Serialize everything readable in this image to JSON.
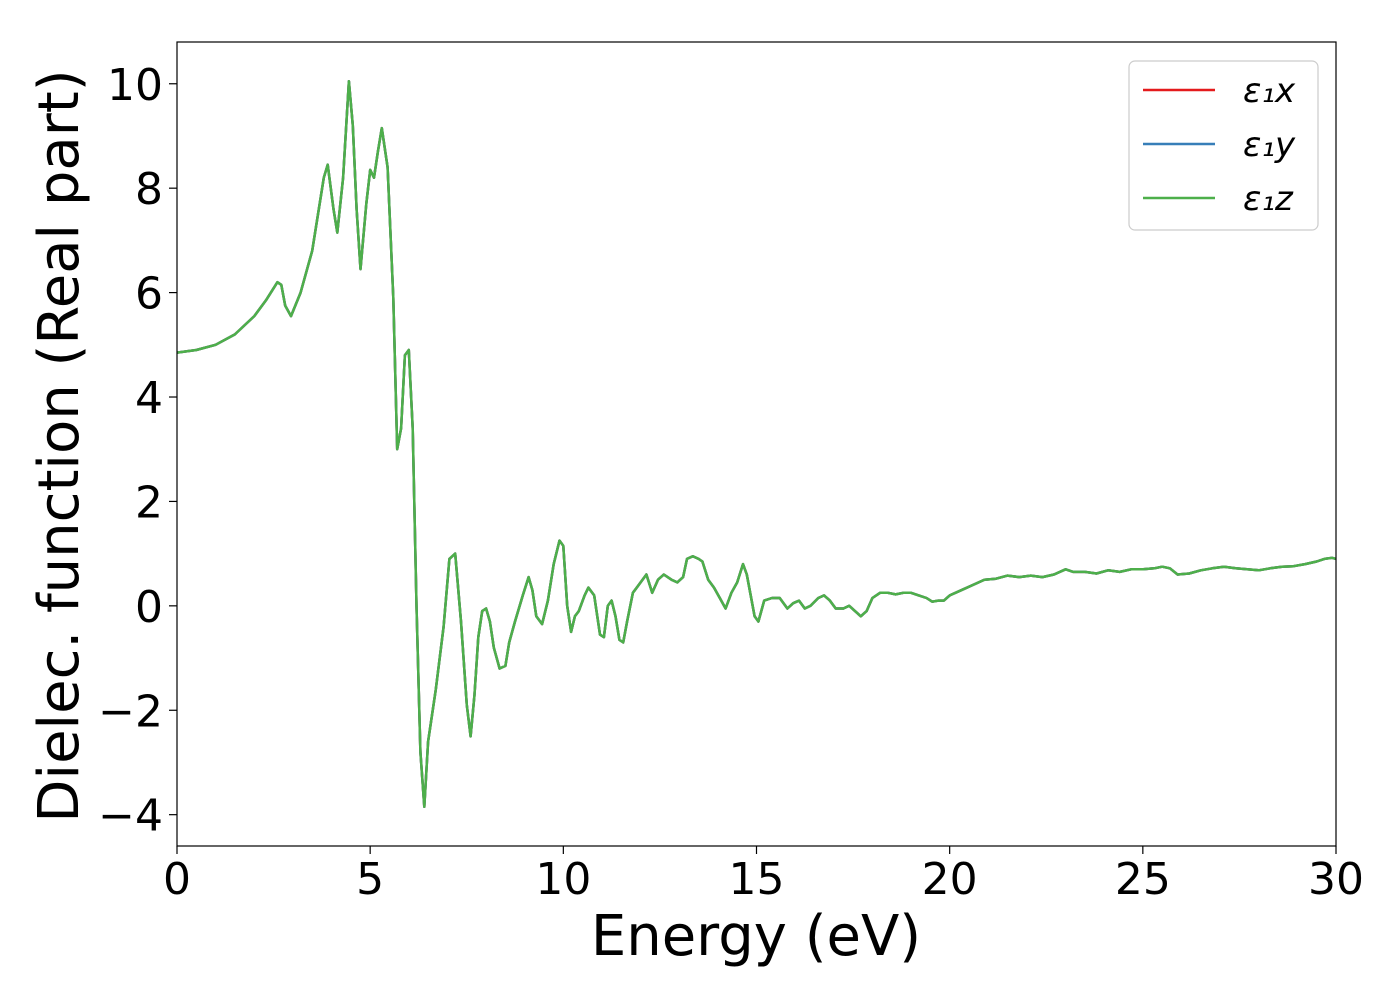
{
  "chart_data": {
    "type": "line",
    "xlabel": "Energy (eV)",
    "ylabel": "Dielec. function (Real part)",
    "xlim": [
      0,
      30
    ],
    "ylim": [
      -4.6,
      10.8
    ],
    "xticks": [
      0,
      5,
      10,
      15,
      20,
      25,
      30
    ],
    "xtick_labels": [
      "0",
      "5",
      "10",
      "15",
      "20",
      "25",
      "30"
    ],
    "yticks": [
      -4,
      -2,
      0,
      2,
      4,
      6,
      8,
      10
    ],
    "ytick_labels": [
      "−4",
      "−2",
      "0",
      "2",
      "4",
      "6",
      "8",
      "10"
    ],
    "grid": false,
    "legend_position": "top-right",
    "x": [
      0.0,
      0.5,
      1.0,
      1.5,
      2.0,
      2.3,
      2.6,
      2.7,
      2.8,
      2.95,
      3.2,
      3.5,
      3.8,
      3.9,
      4.05,
      4.15,
      4.3,
      4.45,
      4.55,
      4.65,
      4.75,
      4.9,
      5.0,
      5.1,
      5.2,
      5.3,
      5.45,
      5.6,
      5.7,
      5.8,
      5.9,
      6.0,
      6.1,
      6.2,
      6.3,
      6.4,
      6.5,
      6.7,
      6.9,
      7.05,
      7.2,
      7.35,
      7.5,
      7.6,
      7.7,
      7.8,
      7.9,
      8.0,
      8.1,
      8.2,
      8.35,
      8.5,
      8.6,
      8.75,
      8.95,
      9.1,
      9.2,
      9.3,
      9.45,
      9.6,
      9.75,
      9.9,
      10.0,
      10.1,
      10.2,
      10.3,
      10.4,
      10.55,
      10.65,
      10.8,
      10.95,
      11.05,
      11.15,
      11.25,
      11.35,
      11.45,
      11.55,
      11.65,
      11.8,
      12.0,
      12.15,
      12.3,
      12.45,
      12.6,
      12.8,
      12.95,
      13.1,
      13.2,
      13.35,
      13.5,
      13.6,
      13.75,
      13.9,
      14.05,
      14.2,
      14.35,
      14.5,
      14.65,
      14.75,
      14.85,
      14.95,
      15.05,
      15.2,
      15.4,
      15.6,
      15.8,
      15.95,
      16.1,
      16.25,
      16.4,
      16.6,
      16.75,
      16.9,
      17.05,
      17.25,
      17.4,
      17.55,
      17.7,
      17.85,
      18.0,
      18.2,
      18.4,
      18.6,
      18.8,
      19.0,
      19.2,
      19.4,
      19.55,
      19.7,
      19.85,
      20.0,
      20.3,
      20.6,
      20.9,
      21.2,
      21.5,
      21.8,
      22.1,
      22.4,
      22.7,
      23.0,
      23.2,
      23.5,
      23.8,
      24.1,
      24.4,
      24.7,
      25.0,
      25.3,
      25.5,
      25.7,
      25.9,
      26.2,
      26.5,
      26.8,
      27.1,
      27.4,
      27.7,
      28.0,
      28.3,
      28.6,
      28.9,
      29.2,
      29.5,
      29.7,
      29.9,
      30.0
    ],
    "series": [
      {
        "name": "ε₁x",
        "color": "#e41a1c",
        "y": [
          4.85,
          4.9,
          5.0,
          5.2,
          5.55,
          5.85,
          6.2,
          6.15,
          5.75,
          5.55,
          6.0,
          6.8,
          8.2,
          8.45,
          7.6,
          7.15,
          8.2,
          10.05,
          9.2,
          7.6,
          6.45,
          7.7,
          8.35,
          8.2,
          8.7,
          9.15,
          8.4,
          5.9,
          3.0,
          3.4,
          4.8,
          4.9,
          3.4,
          0.0,
          -2.8,
          -3.85,
          -2.6,
          -1.6,
          -0.4,
          0.9,
          1.0,
          -0.3,
          -1.9,
          -2.5,
          -1.7,
          -0.6,
          -0.1,
          -0.05,
          -0.3,
          -0.8,
          -1.2,
          -1.15,
          -0.7,
          -0.3,
          0.2,
          0.55,
          0.3,
          -0.2,
          -0.35,
          0.1,
          0.8,
          1.25,
          1.15,
          0.0,
          -0.5,
          -0.2,
          -0.1,
          0.2,
          0.35,
          0.2,
          -0.55,
          -0.6,
          0.0,
          0.1,
          -0.2,
          -0.65,
          -0.7,
          -0.3,
          0.25,
          0.45,
          0.6,
          0.25,
          0.5,
          0.6,
          0.5,
          0.45,
          0.55,
          0.9,
          0.95,
          0.9,
          0.85,
          0.5,
          0.35,
          0.15,
          -0.05,
          0.25,
          0.45,
          0.8,
          0.6,
          0.2,
          -0.2,
          -0.3,
          0.1,
          0.15,
          0.15,
          -0.05,
          0.05,
          0.1,
          -0.05,
          0.0,
          0.15,
          0.2,
          0.1,
          -0.05,
          -0.05,
          0.0,
          -0.1,
          -0.2,
          -0.1,
          0.15,
          0.25,
          0.25,
          0.22,
          0.25,
          0.25,
          0.2,
          0.15,
          0.08,
          0.1,
          0.1,
          0.2,
          0.3,
          0.4,
          0.5,
          0.52,
          0.58,
          0.55,
          0.58,
          0.55,
          0.6,
          0.7,
          0.65,
          0.65,
          0.62,
          0.68,
          0.65,
          0.7,
          0.7,
          0.72,
          0.75,
          0.72,
          0.6,
          0.62,
          0.68,
          0.72,
          0.75,
          0.72,
          0.7,
          0.68,
          0.72,
          0.75,
          0.76,
          0.8,
          0.85,
          0.9,
          0.92,
          0.9
        ]
      },
      {
        "name": "ε₁y",
        "color": "#377eb8",
        "y": [
          4.85,
          4.9,
          5.0,
          5.2,
          5.55,
          5.85,
          6.2,
          6.15,
          5.75,
          5.55,
          6.0,
          6.8,
          8.2,
          8.45,
          7.6,
          7.15,
          8.2,
          10.05,
          9.2,
          7.6,
          6.45,
          7.7,
          8.35,
          8.2,
          8.7,
          9.15,
          8.4,
          5.9,
          3.0,
          3.4,
          4.8,
          4.9,
          3.4,
          0.0,
          -2.8,
          -3.85,
          -2.6,
          -1.6,
          -0.4,
          0.9,
          1.0,
          -0.3,
          -1.9,
          -2.5,
          -1.7,
          -0.6,
          -0.1,
          -0.05,
          -0.3,
          -0.8,
          -1.2,
          -1.15,
          -0.7,
          -0.3,
          0.2,
          0.55,
          0.3,
          -0.2,
          -0.35,
          0.1,
          0.8,
          1.25,
          1.15,
          0.0,
          -0.5,
          -0.2,
          -0.1,
          0.2,
          0.35,
          0.2,
          -0.55,
          -0.6,
          0.0,
          0.1,
          -0.2,
          -0.65,
          -0.7,
          -0.3,
          0.25,
          0.45,
          0.6,
          0.25,
          0.5,
          0.6,
          0.5,
          0.45,
          0.55,
          0.9,
          0.95,
          0.9,
          0.85,
          0.5,
          0.35,
          0.15,
          -0.05,
          0.25,
          0.45,
          0.8,
          0.6,
          0.2,
          -0.2,
          -0.3,
          0.1,
          0.15,
          0.15,
          -0.05,
          0.05,
          0.1,
          -0.05,
          0.0,
          0.15,
          0.2,
          0.1,
          -0.05,
          -0.05,
          0.0,
          -0.1,
          -0.2,
          -0.1,
          0.15,
          0.25,
          0.25,
          0.22,
          0.25,
          0.25,
          0.2,
          0.15,
          0.08,
          0.1,
          0.1,
          0.2,
          0.3,
          0.4,
          0.5,
          0.52,
          0.58,
          0.55,
          0.58,
          0.55,
          0.6,
          0.7,
          0.65,
          0.65,
          0.62,
          0.68,
          0.65,
          0.7,
          0.7,
          0.72,
          0.75,
          0.72,
          0.6,
          0.62,
          0.68,
          0.72,
          0.75,
          0.72,
          0.7,
          0.68,
          0.72,
          0.75,
          0.76,
          0.8,
          0.85,
          0.9,
          0.92,
          0.9
        ]
      },
      {
        "name": "ε₁z",
        "color": "#4daf4a",
        "y": [
          4.85,
          4.9,
          5.0,
          5.2,
          5.55,
          5.85,
          6.2,
          6.15,
          5.75,
          5.55,
          6.0,
          6.8,
          8.2,
          8.45,
          7.6,
          7.15,
          8.2,
          10.05,
          9.2,
          7.6,
          6.45,
          7.7,
          8.35,
          8.2,
          8.7,
          9.15,
          8.4,
          5.9,
          3.0,
          3.4,
          4.8,
          4.9,
          3.4,
          0.0,
          -2.8,
          -3.85,
          -2.6,
          -1.6,
          -0.4,
          0.9,
          1.0,
          -0.3,
          -1.9,
          -2.5,
          -1.7,
          -0.6,
          -0.1,
          -0.05,
          -0.3,
          -0.8,
          -1.2,
          -1.15,
          -0.7,
          -0.3,
          0.2,
          0.55,
          0.3,
          -0.2,
          -0.35,
          0.1,
          0.8,
          1.25,
          1.15,
          0.0,
          -0.5,
          -0.2,
          -0.1,
          0.2,
          0.35,
          0.2,
          -0.55,
          -0.6,
          0.0,
          0.1,
          -0.2,
          -0.65,
          -0.7,
          -0.3,
          0.25,
          0.45,
          0.6,
          0.25,
          0.5,
          0.6,
          0.5,
          0.45,
          0.55,
          0.9,
          0.95,
          0.9,
          0.85,
          0.5,
          0.35,
          0.15,
          -0.05,
          0.25,
          0.45,
          0.8,
          0.6,
          0.2,
          -0.2,
          -0.3,
          0.1,
          0.15,
          0.15,
          -0.05,
          0.05,
          0.1,
          -0.05,
          0.0,
          0.15,
          0.2,
          0.1,
          -0.05,
          -0.05,
          0.0,
          -0.1,
          -0.2,
          -0.1,
          0.15,
          0.25,
          0.25,
          0.22,
          0.25,
          0.25,
          0.2,
          0.15,
          0.08,
          0.1,
          0.1,
          0.2,
          0.3,
          0.4,
          0.5,
          0.52,
          0.58,
          0.55,
          0.58,
          0.55,
          0.6,
          0.7,
          0.65,
          0.65,
          0.62,
          0.68,
          0.65,
          0.7,
          0.7,
          0.72,
          0.75,
          0.72,
          0.6,
          0.62,
          0.68,
          0.72,
          0.75,
          0.72,
          0.7,
          0.68,
          0.72,
          0.75,
          0.76,
          0.8,
          0.85,
          0.9,
          0.92,
          0.9
        ]
      }
    ]
  }
}
